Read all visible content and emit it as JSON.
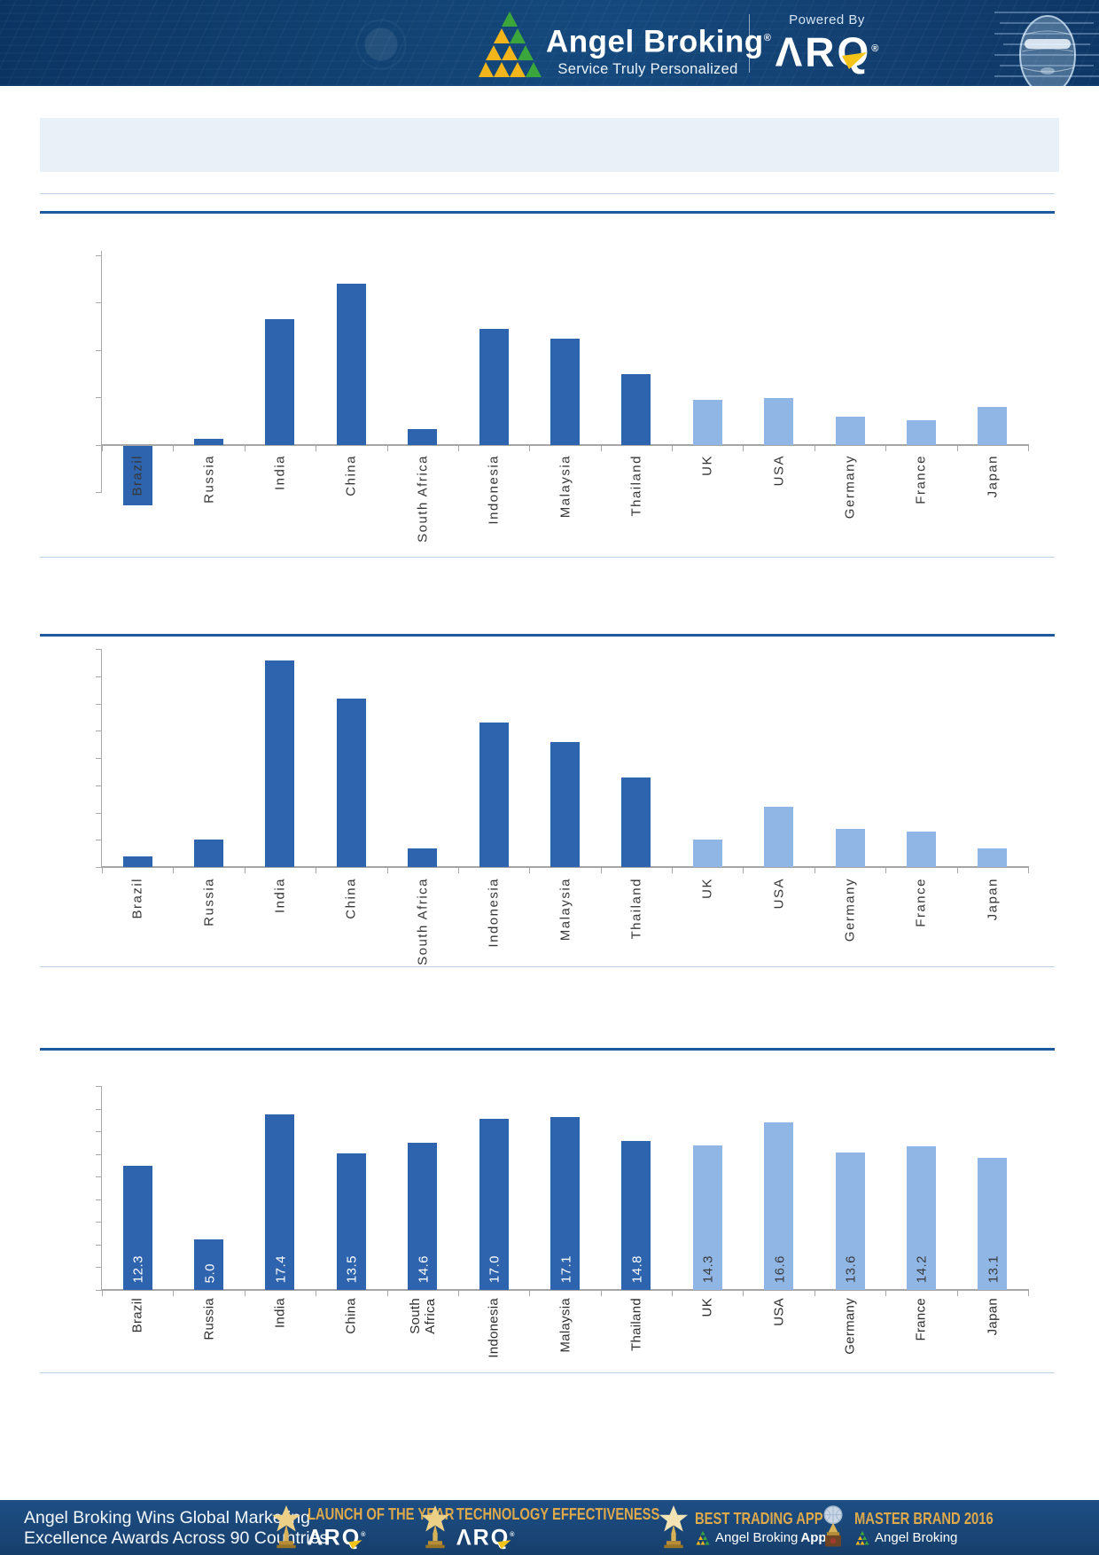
{
  "header": {
    "brand": "Angel Broking",
    "brand_reg": "®",
    "tagline": "Service Truly Personalized",
    "powered_by": "Powered By",
    "arq_wordmark": "ΛRQ",
    "arq_reg": "®"
  },
  "title_box": {
    "text": ""
  },
  "sections": [
    {
      "heading": ""
    },
    {
      "heading": ""
    },
    {
      "heading": ""
    }
  ],
  "chart_data": [
    {
      "type": "bar",
      "title": "",
      "categories": [
        "Brazil",
        "Russia",
        "India",
        "China",
        "South Africa",
        "Indonesia",
        "Malaysia",
        "Thailand",
        "UK",
        "USA",
        "Germany",
        "France",
        "Japan"
      ],
      "values": [
        -1.25,
        0.13,
        2.65,
        3.4,
        0.34,
        2.45,
        2.25,
        1.5,
        0.95,
        1.0,
        0.6,
        0.53,
        0.8
      ],
      "data_labels_visible": false,
      "value_axis": {
        "labels_visible": false,
        "tick_interval": 1,
        "range": [
          -1,
          4
        ]
      },
      "legend": "none",
      "grid": "off",
      "bar_color_dark": "#2e64ae",
      "bar_color_light": "#8fb6e4",
      "light_color_from_index": 8,
      "note": "y-axis has tick marks but no visible numeric labels; values estimated in gridline units; Brazil bar is negative"
    },
    {
      "type": "bar",
      "title": "",
      "categories": [
        "Brazil",
        "Russia",
        "India",
        "China",
        "South Africa",
        "Indonesia",
        "Malaysia",
        "Thailand",
        "UK",
        "USA",
        "Germany",
        "France",
        "Japan"
      ],
      "values": [
        0.4,
        1.0,
        7.6,
        6.2,
        0.7,
        5.3,
        4.6,
        3.3,
        1.0,
        2.2,
        1.4,
        1.3,
        0.7
      ],
      "data_labels_visible": false,
      "value_axis": {
        "labels_visible": false,
        "tick_interval": 1,
        "range": [
          0,
          8
        ]
      },
      "legend": "none",
      "grid": "off",
      "bar_color_dark": "#2e64ae",
      "bar_color_light": "#8fb6e4",
      "light_color_from_index": 8,
      "note": "y-axis has tick marks but no visible numeric labels; values estimated in gridline units"
    },
    {
      "type": "bar",
      "title": "",
      "categories": [
        "Brazil",
        "Russia",
        "India",
        "China",
        "South Africa",
        "Indonesia",
        "Malaysia",
        "Thailand",
        "UK",
        "USA",
        "Germany",
        "France",
        "Japan"
      ],
      "values": [
        12.3,
        5.0,
        17.4,
        13.5,
        14.6,
        17.0,
        17.1,
        14.8,
        14.3,
        16.6,
        13.6,
        14.2,
        13.1
      ],
      "data_labels": [
        "12.3",
        "5.0",
        "17.4",
        "13.5",
        "14.6",
        "17.0",
        "17.1",
        "14.8",
        "14.3",
        "16.6",
        "13.6",
        "14.2",
        "13.1"
      ],
      "data_labels_visible": true,
      "display_overrides": {
        "South Africa": "South\nAfrica"
      },
      "value_axis": {
        "labels_visible": false,
        "range": [
          0,
          20
        ]
      },
      "legend": "none",
      "grid": "off",
      "bar_color_dark": "#2e64ae",
      "bar_color_light": "#8fb6e4",
      "light_color_from_index": 8,
      "note": "data labels shown vertically inside bars; white on dark bars, dark on light bars"
    }
  ],
  "footer": {
    "headline_line1": "Angel Broking Wins Global Marketing",
    "headline_line2": "Excellence Awards Across 90 Countries",
    "awards": [
      {
        "title": "LAUNCH OF THE YEAR",
        "subtitle": "ΛRQ",
        "subtitle_reg": "®",
        "subtitle_type": "arq"
      },
      {
        "title": "TECHNOLOGY EFFECTIVENESS",
        "subtitle": "ΛRQ",
        "subtitle_reg": "®",
        "subtitle_type": "arq"
      },
      {
        "title": "BEST TRADING APP",
        "subtitle": "Angel Broking",
        "subtitle_bold": "App",
        "subtitle_type": "angel"
      },
      {
        "title": "MASTER BRAND 2016",
        "subtitle": "Angel Broking",
        "subtitle_bold": "",
        "subtitle_type": "angel"
      }
    ]
  },
  "colors": {
    "bar_dark": "#2e64ae",
    "bar_light": "#8fb6e4",
    "axis_gray": "#a6a6a6",
    "section_line_dark": "#1f5a9f",
    "section_line_light": "#bcd2e8",
    "header_navy": "#10406f",
    "footer_navy": "#1a4677",
    "award_gold": "#dfa94a",
    "logo_green": "#3ba63c",
    "logo_yellow": "#f2b51c",
    "title_box_bg": "#e9f0f8"
  }
}
